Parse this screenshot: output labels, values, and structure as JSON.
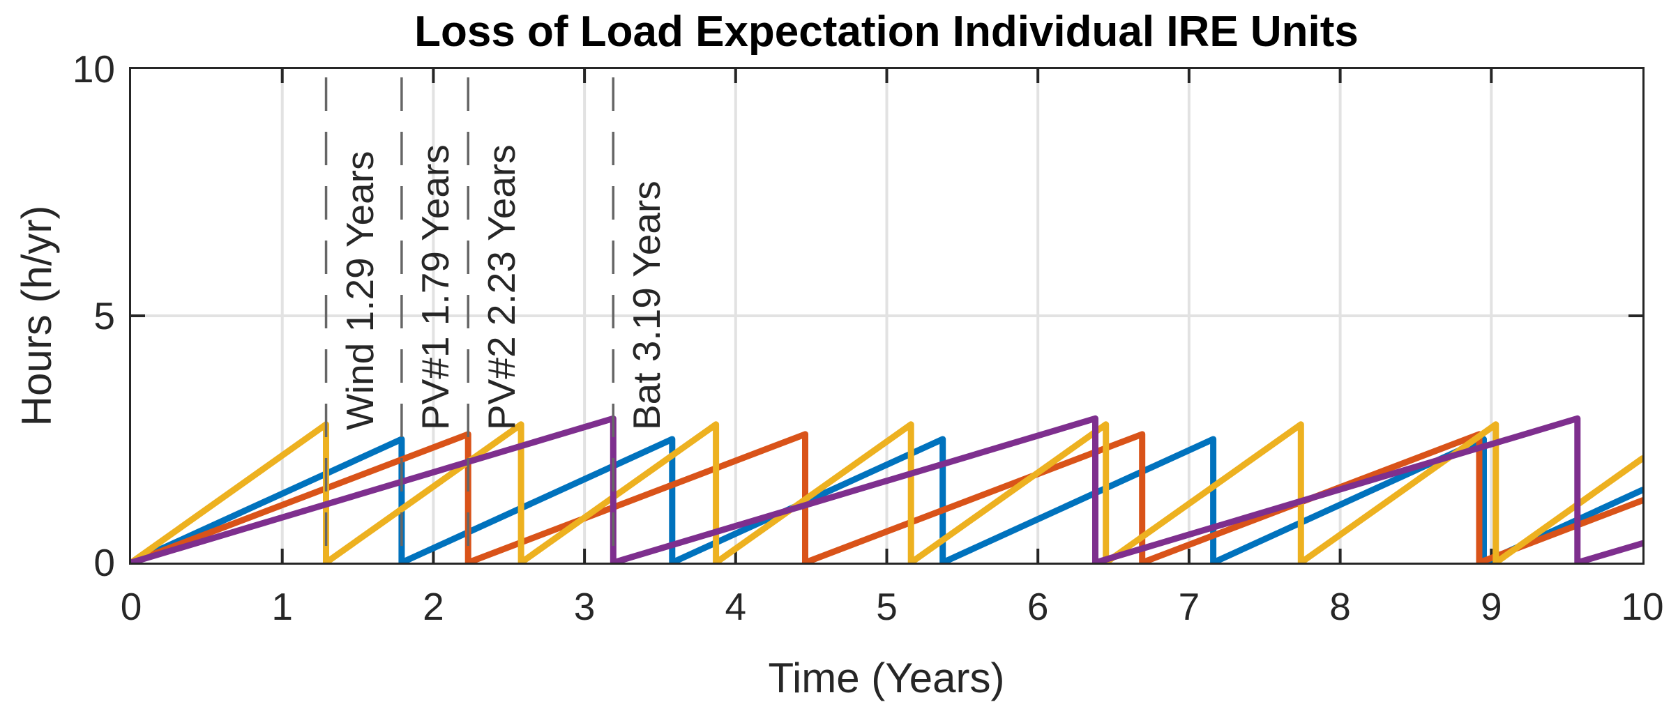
{
  "figure": {
    "title": "Loss of Load Expectation Individual IRE Units"
  },
  "axes": {
    "xlabel": "Time (Years)",
    "ylabel": "Hours (h/yr)",
    "xlim": [
      0,
      10
    ],
    "ylim": [
      0,
      10
    ],
    "x_tick_values": [
      0,
      1,
      2,
      3,
      4,
      5,
      6,
      7,
      8,
      9,
      10
    ],
    "x_tick_labels": [
      "0",
      "1",
      "2",
      "3",
      "4",
      "5",
      "6",
      "7",
      "8",
      "9",
      "10"
    ],
    "y_tick_values": [
      0,
      5,
      10
    ],
    "y_tick_labels": [
      "0",
      "5",
      "10"
    ],
    "x_grid": [
      1,
      2,
      3,
      4,
      5,
      6,
      7,
      8,
      9
    ],
    "y_grid": [
      5
    ],
    "grid_color": "#e2e2e2",
    "axis_color": "#262626",
    "text_color": "#262626"
  },
  "annotations": [
    {
      "label": "Wind 1.29 Years",
      "x": 1.29
    },
    {
      "label": "PV#1 1.79 Years",
      "x": 1.79
    },
    {
      "label": "PV#2 2.23 Years",
      "x": 2.23
    },
    {
      "label": "Bat 3.19 Years",
      "x": 3.19
    }
  ],
  "annotation_line_color": "#666666",
  "chart_data": {
    "type": "line",
    "title": "Loss of Load Expectation Individual IRE Units",
    "xlabel": "Time (Years)",
    "ylabel": "Hours (h/yr)",
    "xlim": [
      0,
      10
    ],
    "ylim": [
      0,
      10
    ],
    "grid": true,
    "legend": "none",
    "series": [
      {
        "name": "PV#1",
        "color": "#0072BD",
        "replacement_period_years": 1.79,
        "peak_hours": 2.5,
        "points": [
          [
            0,
            0
          ],
          [
            1.79,
            2.5
          ],
          [
            1.79,
            0
          ],
          [
            3.58,
            2.5
          ],
          [
            3.58,
            0
          ],
          [
            5.37,
            2.5
          ],
          [
            5.37,
            0
          ],
          [
            7.16,
            2.5
          ],
          [
            7.16,
            0
          ],
          [
            8.95,
            2.5
          ],
          [
            8.95,
            0
          ],
          [
            10,
            1.47
          ]
        ]
      },
      {
        "name": "PV#2",
        "color": "#D95319",
        "replacement_period_years": 2.23,
        "peak_hours": 2.6,
        "points": [
          [
            0,
            0
          ],
          [
            2.23,
            2.6
          ],
          [
            2.23,
            0
          ],
          [
            4.46,
            2.6
          ],
          [
            4.46,
            0
          ],
          [
            6.69,
            2.6
          ],
          [
            6.69,
            0
          ],
          [
            8.92,
            2.6
          ],
          [
            8.92,
            0
          ],
          [
            10,
            1.26
          ]
        ]
      },
      {
        "name": "Wind",
        "color": "#EDB120",
        "replacement_period_years": 1.29,
        "peak_hours": 2.8,
        "points": [
          [
            0,
            0
          ],
          [
            1.29,
            2.8
          ],
          [
            1.29,
            0
          ],
          [
            2.58,
            2.8
          ],
          [
            2.58,
            0
          ],
          [
            3.87,
            2.8
          ],
          [
            3.87,
            0
          ],
          [
            5.16,
            2.8
          ],
          [
            5.16,
            0
          ],
          [
            6.45,
            2.8
          ],
          [
            6.45,
            0
          ],
          [
            7.74,
            2.8
          ],
          [
            7.74,
            0
          ],
          [
            9.03,
            2.8
          ],
          [
            9.03,
            0
          ],
          [
            10,
            2.11
          ]
        ]
      },
      {
        "name": "Bat",
        "color": "#7E2F8E",
        "replacement_period_years": 3.19,
        "peak_hours": 2.92,
        "points": [
          [
            0,
            0
          ],
          [
            3.19,
            2.92
          ],
          [
            3.19,
            0
          ],
          [
            6.38,
            2.92
          ],
          [
            6.38,
            0
          ],
          [
            9.57,
            2.92
          ],
          [
            9.57,
            0
          ],
          [
            10,
            0.39
          ]
        ]
      }
    ]
  }
}
